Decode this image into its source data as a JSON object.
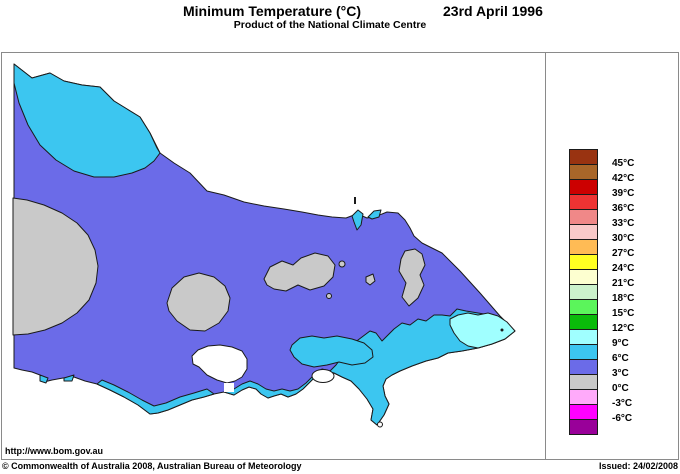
{
  "header": {
    "title": "Minimum Temperature (°C)",
    "date": "23rd April 1996",
    "subtitle": "Product of the National Climate Centre"
  },
  "footer": {
    "url": "http://www.bom.gov.au",
    "copyright": "© Commonwealth of Australia 2008, Australian Bureau of Meteorology",
    "issued": "Issued: 24/02/2008"
  },
  "legend": {
    "unit": "°C",
    "labels": [
      "45°C",
      "42°C",
      "39°C",
      "36°C",
      "33°C",
      "30°C",
      "27°C",
      "24°C",
      "21°C",
      "18°C",
      "15°C",
      "12°C",
      "9°C",
      "6°C",
      "3°C",
      "0°C",
      "-3°C",
      "-6°C"
    ],
    "colors": [
      "#993311",
      "#A96629",
      "#CC0000",
      "#EE3333",
      "#F08888",
      "#F9C9C9",
      "#FFBB55",
      "#FFFF22",
      "#FDFFD0",
      "#CCF2CC",
      "#5BF55B",
      "#0ABB0A",
      "#A0FFFF",
      "#3CC6F0",
      "#6B6BE8",
      "#C9C9C9",
      "#FFAAFA",
      "#FF00FF",
      "#990099"
    ]
  },
  "map": {
    "state": "Victoria",
    "colors": {
      "band_0_3": "#C9C9C9",
      "band_3_6": "#6B6BE8",
      "band_6_9": "#3CC6F0",
      "band_9_12": "#A0FFFF",
      "water": "#FFFFFF",
      "outline": "#1a1a1a"
    },
    "regions": [
      {
        "name": "northwest-mallee",
        "band_c": "6 to 9"
      },
      {
        "name": "murray-border-patch",
        "band_c": "6 to 9"
      },
      {
        "name": "state-interior",
        "band_c": "3 to 6"
      },
      {
        "name": "far-west",
        "band_c": "0 to 3"
      },
      {
        "name": "central-highlands-west",
        "band_c": "0 to 3"
      },
      {
        "name": "central-highlands",
        "band_c": "0 to 3"
      },
      {
        "name": "northeast-alps",
        "band_c": "0 to 3"
      },
      {
        "name": "southwest-coast",
        "band_c": "6 to 9"
      },
      {
        "name": "south-coast-gippsland",
        "band_c": "6 to 9"
      },
      {
        "name": "west-gippsland-hills",
        "band_c": "6 to 9"
      },
      {
        "name": "east-gippsland-coast",
        "band_c": "9 to 12"
      }
    ]
  }
}
